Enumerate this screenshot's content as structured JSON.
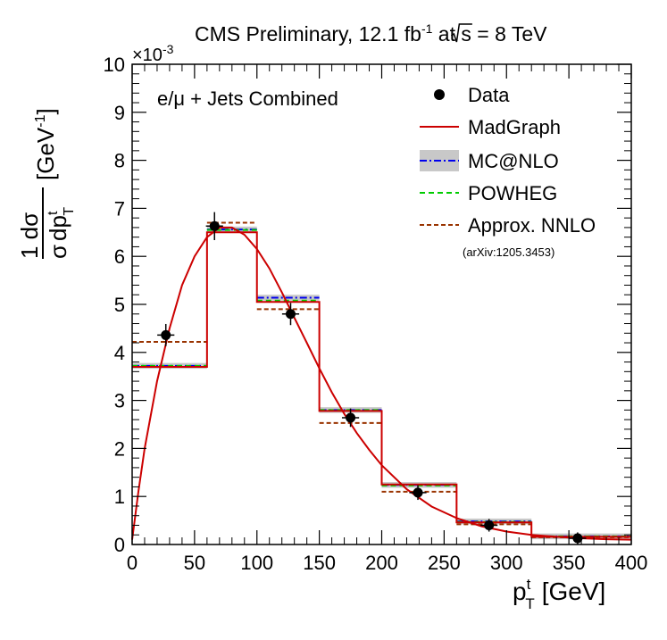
{
  "chart_data": {
    "type": "histogram-comparison",
    "title": "CMS Preliminary, 12.1 fb",
    "title_sup": "-1",
    "title_tail": " at ",
    "title_sqrt_s": "s",
    "title_energy": " = 8 TeV",
    "channel_label": "e/μ + Jets Combined",
    "y_exponent_prefix": "×10",
    "y_exponent_value": "-3",
    "ylabel_numerator": "1 dσ",
    "ylabel_sigma": "σ",
    "ylabel_dp": "dp",
    "ylabel_dp_sup": "t",
    "ylabel_dp_sub": "T",
    "ylabel_unit": "[GeV",
    "ylabel_unit_sup": "-1",
    "ylabel_unit_close": "]",
    "xlabel_p": "p",
    "xlabel_sup": "t",
    "xlabel_sub": "T",
    "xlabel_unit": "[GeV]",
    "xlim": [
      0,
      400
    ],
    "ylim": [
      0,
      10
    ],
    "x_major_ticks": [
      0,
      50,
      100,
      150,
      200,
      250,
      300,
      350,
      400
    ],
    "x_tick_labels": [
      "0",
      "50",
      "100",
      "150",
      "200",
      "250",
      "300",
      "350",
      "400"
    ],
    "y_major_ticks": [
      0,
      1,
      2,
      3,
      4,
      5,
      6,
      7,
      8,
      9,
      10
    ],
    "y_tick_labels": [
      "0",
      "1",
      "2",
      "3",
      "4",
      "5",
      "6",
      "7",
      "8",
      "9",
      "10"
    ],
    "bin_edges": [
      0,
      60,
      100,
      150,
      200,
      260,
      320,
      400
    ],
    "series": [
      {
        "name": "MadGraph",
        "style": "solid",
        "color": "#cc0000",
        "values": [
          3.7,
          6.5,
          5.05,
          2.78,
          1.25,
          0.46,
          0.16
        ]
      },
      {
        "name": "MC@NLO",
        "style": "dash-dot",
        "color": "#0000ee",
        "band_color": "#c8c8c8",
        "values": [
          3.72,
          6.56,
          5.14,
          2.8,
          1.24,
          0.48,
          0.17
        ]
      },
      {
        "name": "POWHEG",
        "style": "dashed",
        "color": "#00cc00",
        "values": [
          3.72,
          6.55,
          5.08,
          2.8,
          1.23,
          0.47,
          0.17
        ]
      },
      {
        "name": "Approx. NNLO",
        "style": "dashed",
        "color": "#993300",
        "values": [
          4.22,
          6.7,
          4.9,
          2.53,
          1.1,
          0.42,
          0.15
        ]
      }
    ],
    "data": {
      "name": "Data",
      "x": [
        27,
        66,
        127,
        175,
        229,
        286,
        357
      ],
      "y": [
        4.36,
        6.63,
        4.8,
        2.64,
        1.08,
        0.4,
        0.13
      ],
      "yerr": [
        0.12,
        0.18,
        0.12,
        0.08,
        0.04,
        0.02,
        0.01
      ],
      "xerr": [
        4,
        4,
        4,
        4,
        4,
        4,
        4
      ]
    },
    "madgraph_curve": {
      "x": [
        0,
        5,
        10,
        20,
        30,
        40,
        50,
        60,
        70,
        80,
        90,
        100,
        110,
        120,
        130,
        140,
        150,
        160,
        170,
        180,
        190,
        200,
        220,
        240,
        260,
        280,
        300,
        320,
        340,
        360,
        380,
        400
      ],
      "y": [
        0.1,
        1.1,
        2.0,
        3.4,
        4.5,
        5.4,
        6.0,
        6.4,
        6.6,
        6.6,
        6.45,
        6.15,
        5.75,
        5.25,
        4.72,
        4.2,
        3.67,
        3.17,
        2.72,
        2.32,
        1.97,
        1.65,
        1.15,
        0.79,
        0.55,
        0.38,
        0.27,
        0.2,
        0.16,
        0.13,
        0.11,
        0.1
      ]
    },
    "legend": {
      "position": "top-right",
      "entries": [
        "Data",
        "MadGraph",
        "MC@NLO",
        "POWHEG",
        "Approx. NNLO"
      ],
      "nnlo_reference": "(arXiv:1205.3453)"
    }
  }
}
